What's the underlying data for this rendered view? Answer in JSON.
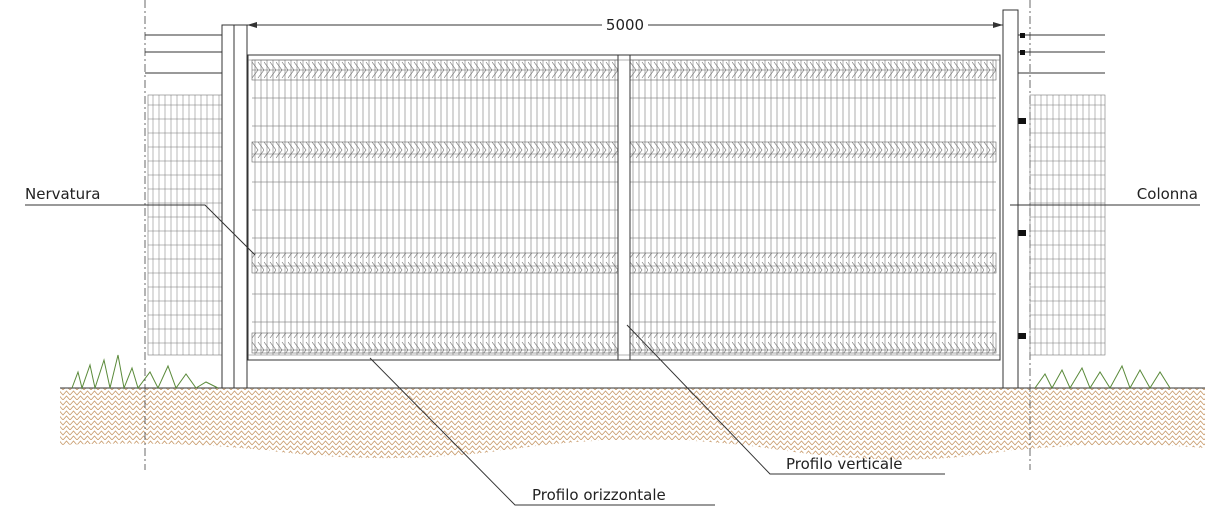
{
  "dimension": "5000",
  "labels": {
    "nervatura": "Nervatura",
    "colonna": "Colonna",
    "profilo_verticale": "Profilo verticale",
    "profilo_orizzontale": "Profilo orizzontale"
  }
}
